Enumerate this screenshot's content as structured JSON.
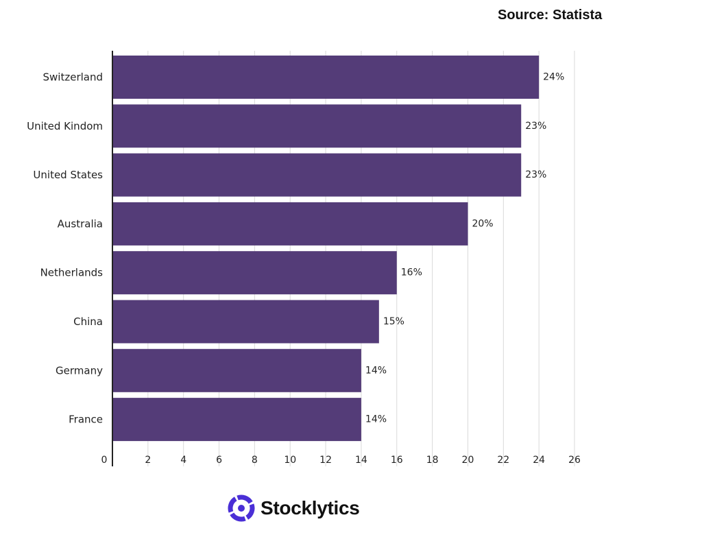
{
  "header": {
    "source": "Source: Statista"
  },
  "brand": {
    "name": "Stocklytics",
    "logo_icon": "stocklytics-logo-icon",
    "logo_color": "#4a2fd6"
  },
  "chart_data": {
    "type": "bar",
    "orientation": "horizontal",
    "categories": [
      "Switzerland",
      "United Kindom",
      "United States",
      "Australia",
      "Netherlands",
      "China",
      "Germany",
      "France"
    ],
    "values": [
      24,
      23,
      23,
      20,
      16,
      15,
      14,
      14
    ],
    "data_labels": [
      "24%",
      "23%",
      "23%",
      "20%",
      "16%",
      "15%",
      "14%",
      "14%"
    ],
    "x_ticks": [
      "0",
      "2",
      "4",
      "6",
      "8",
      "10",
      "12",
      "14",
      "16",
      "18",
      "20",
      "22",
      "24",
      "26"
    ],
    "xlim": [
      0,
      26
    ],
    "grid": true,
    "bar_color": "#543c78",
    "title": "",
    "xlabel": "",
    "ylabel": ""
  }
}
